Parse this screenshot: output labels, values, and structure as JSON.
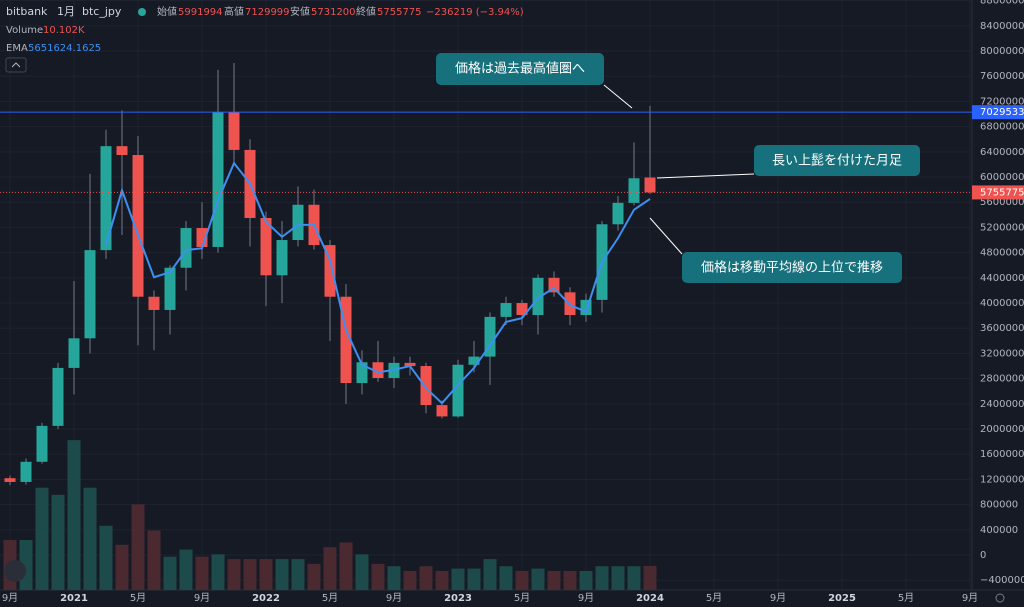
{
  "chart_data": {
    "type": "candlestick",
    "header": {
      "source": "bitbank",
      "interval": "1月",
      "symbol": "btc_jpy",
      "open_label": "始値",
      "high_label": "高値",
      "low_label": "安値",
      "close_label": "終値",
      "change_label": "−236219 (−3.94%)",
      "volume_name": "Volume",
      "volume_label": "10.102K",
      "ema_name": "EMA"
    },
    "categories": [
      "9月",
      null,
      null,
      null,
      "2021",
      null,
      null,
      null,
      "5月",
      null,
      null,
      null,
      "9月",
      null,
      null,
      null,
      "2022",
      null,
      null,
      null,
      "5月",
      null,
      null,
      null,
      "9月",
      null,
      null,
      null,
      "2023",
      null,
      null,
      null,
      "5月",
      null,
      null,
      null,
      "9月",
      null,
      null,
      null,
      "2024"
    ],
    "future_categories": [
      "5月",
      "9月",
      "2025",
      "5月",
      "9月"
    ],
    "open": [
      1220000,
      1160000,
      1480000,
      2050000,
      2970000,
      3440000,
      4840000,
      6490000,
      6350000,
      4100000,
      3890000,
      4560000,
      5190000,
      4890000,
      7030000,
      6430000,
      5350000,
      4440000,
      5000000,
      5560000,
      4920000,
      4100000,
      2730000,
      3060000,
      2810000,
      3050000,
      3000000,
      2380000,
      2200000,
      3020000,
      3150000,
      3780000,
      4000000,
      3810000,
      4400000,
      4170000,
      3810000,
      4050000,
      5250000,
      5590000,
      5991994
    ],
    "high": [
      1260000,
      1530000,
      2100000,
      3050000,
      4350000,
      6050000,
      6750000,
      7060000,
      6650000,
      4200000,
      4600000,
      5300000,
      5600000,
      7700000,
      7810000,
      6600000,
      5450000,
      5300000,
      5850000,
      5800000,
      5000000,
      4300000,
      3250000,
      3400000,
      3150000,
      3150000,
      3050000,
      2450000,
      3100000,
      3400000,
      3850000,
      4100000,
      4050000,
      4450000,
      4500000,
      4250000,
      4150000,
      5300000,
      5700000,
      6550000,
      7129999
    ],
    "low": [
      1110000,
      1120000,
      1450000,
      2000000,
      2550000,
      3200000,
      4700000,
      5080000,
      3330000,
      3250000,
      3500000,
      4200000,
      4700000,
      4800000,
      6200000,
      4900000,
      3950000,
      4000000,
      4900000,
      4850000,
      3400000,
      2400000,
      2550000,
      2750000,
      2650000,
      2850000,
      2250000,
      2170000,
      2180000,
      2900000,
      2700000,
      3650000,
      3650000,
      3500000,
      4100000,
      3650000,
      3700000,
      3850000,
      5150000,
      5550000,
      5731200
    ],
    "close": [
      1160000,
      1480000,
      2050000,
      2970000,
      3440000,
      4840000,
      6490000,
      6350000,
      4100000,
      3890000,
      4560000,
      5190000,
      4890000,
      7030000,
      6430000,
      5350000,
      4440000,
      5000000,
      5560000,
      4920000,
      4100000,
      2730000,
      3060000,
      2810000,
      3050000,
      3000000,
      2380000,
      2200000,
      3020000,
      3150000,
      3780000,
      4000000,
      3810000,
      4400000,
      4170000,
      3810000,
      4050000,
      5250000,
      5590000,
      5980000,
      5755775
    ],
    "volume": [
      21,
      21,
      43,
      40,
      63,
      43,
      27,
      19,
      36,
      25,
      14,
      17,
      14,
      15,
      13,
      13,
      13,
      13,
      13,
      11,
      18,
      20,
      15,
      11,
      10,
      8,
      10,
      8,
      9,
      9,
      13,
      10,
      8,
      9,
      8,
      8,
      8,
      10,
      10,
      10,
      10.102
    ],
    "volume_ylim": [
      0,
      248
    ],
    "ema": [
      null,
      null,
      null,
      null,
      null,
      null,
      4920000,
      5790000,
      5080000,
      4410000,
      4490000,
      4840000,
      4870000,
      5630000,
      6220000,
      5900000,
      5290000,
      5050000,
      5240000,
      5240000,
      4680000,
      3570000,
      3020000,
      2900000,
      2940000,
      3000000,
      2650000,
      2410000,
      2700000,
      2970000,
      3330000,
      3700000,
      3760000,
      4080000,
      4240000,
      3970000,
      3860000,
      4650000,
      5030000,
      5480000,
      5651624.1625
    ],
    "level_line": 7029533,
    "ylim": [
      -555000,
      8810000
    ],
    "yticks": [
      {
        "value": -400000,
        "label": "−400000"
      },
      0,
      400000,
      800000,
      1200000,
      1600000,
      2000000,
      2400000,
      2800000,
      3200000,
      3600000,
      4000000,
      4400000,
      4800000,
      5200000,
      5600000,
      6000000,
      6400000,
      6800000,
      7200000,
      7600000,
      8000000,
      8400000,
      8800000
    ],
    "grid": true,
    "up_color": "#26a69a",
    "down_color": "#ef5350",
    "volume_up_color": "#1d4a4a",
    "volume_down_color": "#4a2a30",
    "ema_color": "#3d8ff0",
    "level_color": "#2962ff",
    "annotations": [
      "価格は過去最高値圏へ",
      "長い上髭を付けた月足",
      "価格は移動平均線の上位で推移"
    ]
  }
}
